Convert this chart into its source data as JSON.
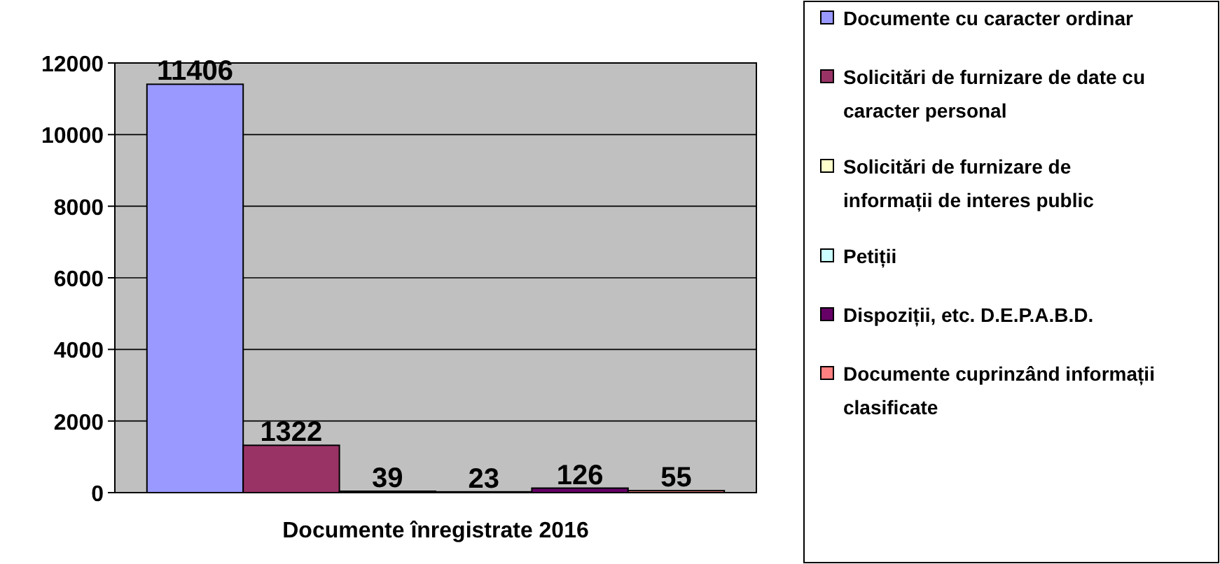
{
  "chart_data": {
    "type": "bar",
    "categories": [
      "Documente înregistrate 2016"
    ],
    "series": [
      {
        "name": "Documente cu caracter ordinar",
        "color": "#9999ff",
        "values": [
          11406
        ]
      },
      {
        "name": "Solicitări de furnizare de date cu caracter personal",
        "color": "#993366",
        "values": [
          1322
        ]
      },
      {
        "name": "Solicitări de furnizare de informații de interes public",
        "color": "#ffffcc",
        "values": [
          39
        ]
      },
      {
        "name": "Petiții",
        "color": "#ccffff",
        "values": [
          23
        ]
      },
      {
        "name": "Dispoziții, etc. D.E.P.A.B.D.",
        "color": "#660066",
        "values": [
          126
        ]
      },
      {
        "name": "Documente cuprinzând informații clasificate",
        "color": "#ff8080",
        "values": [
          55
        ]
      }
    ],
    "ylim": [
      0,
      12000
    ],
    "yticks": [
      0,
      2000,
      4000,
      6000,
      8000,
      10000,
      12000
    ],
    "grid": "y",
    "legend": "right",
    "data_labels": true
  }
}
